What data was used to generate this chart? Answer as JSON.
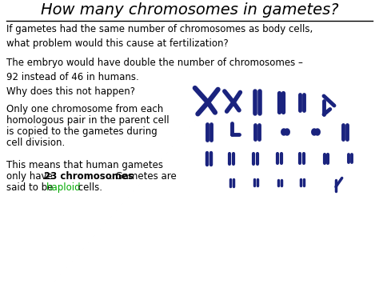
{
  "title": "How many chromosomes in gametes?",
  "background_color": "#ffffff",
  "title_color": "#000000",
  "title_fontsize": 14,
  "body_fontsize": 8.5,
  "paragraph1": "If gametes had the same number of chromosomes as body cells,\nwhat problem would this cause at fertilization?",
  "paragraph2": "The embryo would have double the number of chromosomes –\n92 instead of 46 in humans.",
  "paragraph3": "Why does this not happen?",
  "paragraph4_line1": "Only one chromosome from each",
  "paragraph4_line2": "homologous pair in the parent cell",
  "paragraph4_line3": "is copied to the gametes during",
  "paragraph4_line4": "cell division.",
  "paragraph5_line1": "This means that human gametes",
  "paragraph5_line2a": "only have ",
  "paragraph5_bold": "23 chromosomes",
  "paragraph5_line2b": ". Gametes are",
  "paragraph5_line3a": "said to be ",
  "paragraph5_green": "haploid",
  "paragraph5_line3b": " cells.",
  "bold_color": "#000000",
  "green_color": "#00aa00",
  "text_color": "#000000",
  "chrom_color": "#1a237e"
}
